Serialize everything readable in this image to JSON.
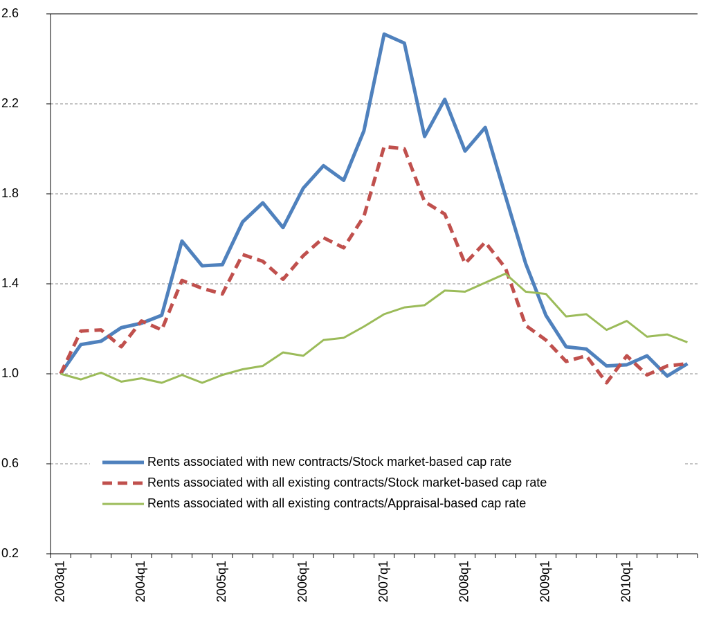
{
  "chart_data": {
    "type": "line",
    "categories": [
      "2003q1",
      null,
      null,
      null,
      "2004q1",
      null,
      null,
      null,
      "2005q1",
      null,
      null,
      null,
      "2006q1",
      null,
      null,
      null,
      "2007q1",
      null,
      null,
      null,
      "2008q1",
      null,
      null,
      null,
      "2009q1",
      null,
      null,
      null,
      "2010q1",
      null,
      null,
      null
    ],
    "series": [
      {
        "name": "Rents associated with new contracts/Stock market-based cap rate",
        "color": "#4f81bd",
        "dash": "solid",
        "width": 5,
        "values": [
          1.0,
          1.13,
          1.145,
          1.205,
          1.225,
          1.26,
          1.59,
          1.48,
          1.485,
          1.675,
          1.76,
          1.65,
          1.825,
          1.925,
          1.86,
          2.08,
          2.51,
          2.47,
          2.055,
          2.22,
          1.99,
          2.095,
          1.79,
          1.49,
          1.26,
          1.12,
          1.11,
          1.035,
          1.04,
          1.08,
          0.99,
          1.045
        ]
      },
      {
        "name": "Rents associated with all existing contracts/Stock market-based cap rate",
        "color": "#c0504d",
        "dash": "dashed",
        "width": 5,
        "values": [
          1.0,
          1.19,
          1.195,
          1.12,
          1.235,
          1.195,
          1.415,
          1.38,
          1.355,
          1.53,
          1.5,
          1.42,
          1.525,
          1.605,
          1.56,
          1.7,
          2.01,
          2.0,
          1.765,
          1.71,
          1.49,
          1.585,
          1.47,
          1.215,
          1.15,
          1.055,
          1.08,
          0.96,
          1.08,
          0.995,
          1.035,
          1.045
        ]
      },
      {
        "name": "Rents associated with all existing contracts/Appraisal-based cap rate",
        "color": "#9bbb59",
        "dash": "solid",
        "width": 3,
        "values": [
          1.0,
          0.975,
          1.005,
          0.965,
          0.98,
          0.96,
          0.995,
          0.96,
          0.995,
          1.02,
          1.035,
          1.095,
          1.08,
          1.15,
          1.16,
          1.21,
          1.265,
          1.295,
          1.305,
          1.37,
          1.365,
          1.405,
          1.445,
          1.365,
          1.355,
          1.255,
          1.265,
          1.195,
          1.235,
          1.165,
          1.175,
          1.14
        ]
      }
    ],
    "ylim": [
      0.2,
      2.6
    ],
    "yticks": [
      0.2,
      0.6,
      {
        "value": 1.0,
        "label": "1.0"
      },
      1.4,
      1.8,
      2.2,
      2.6
    ],
    "grid": true,
    "legend": "bottom"
  }
}
